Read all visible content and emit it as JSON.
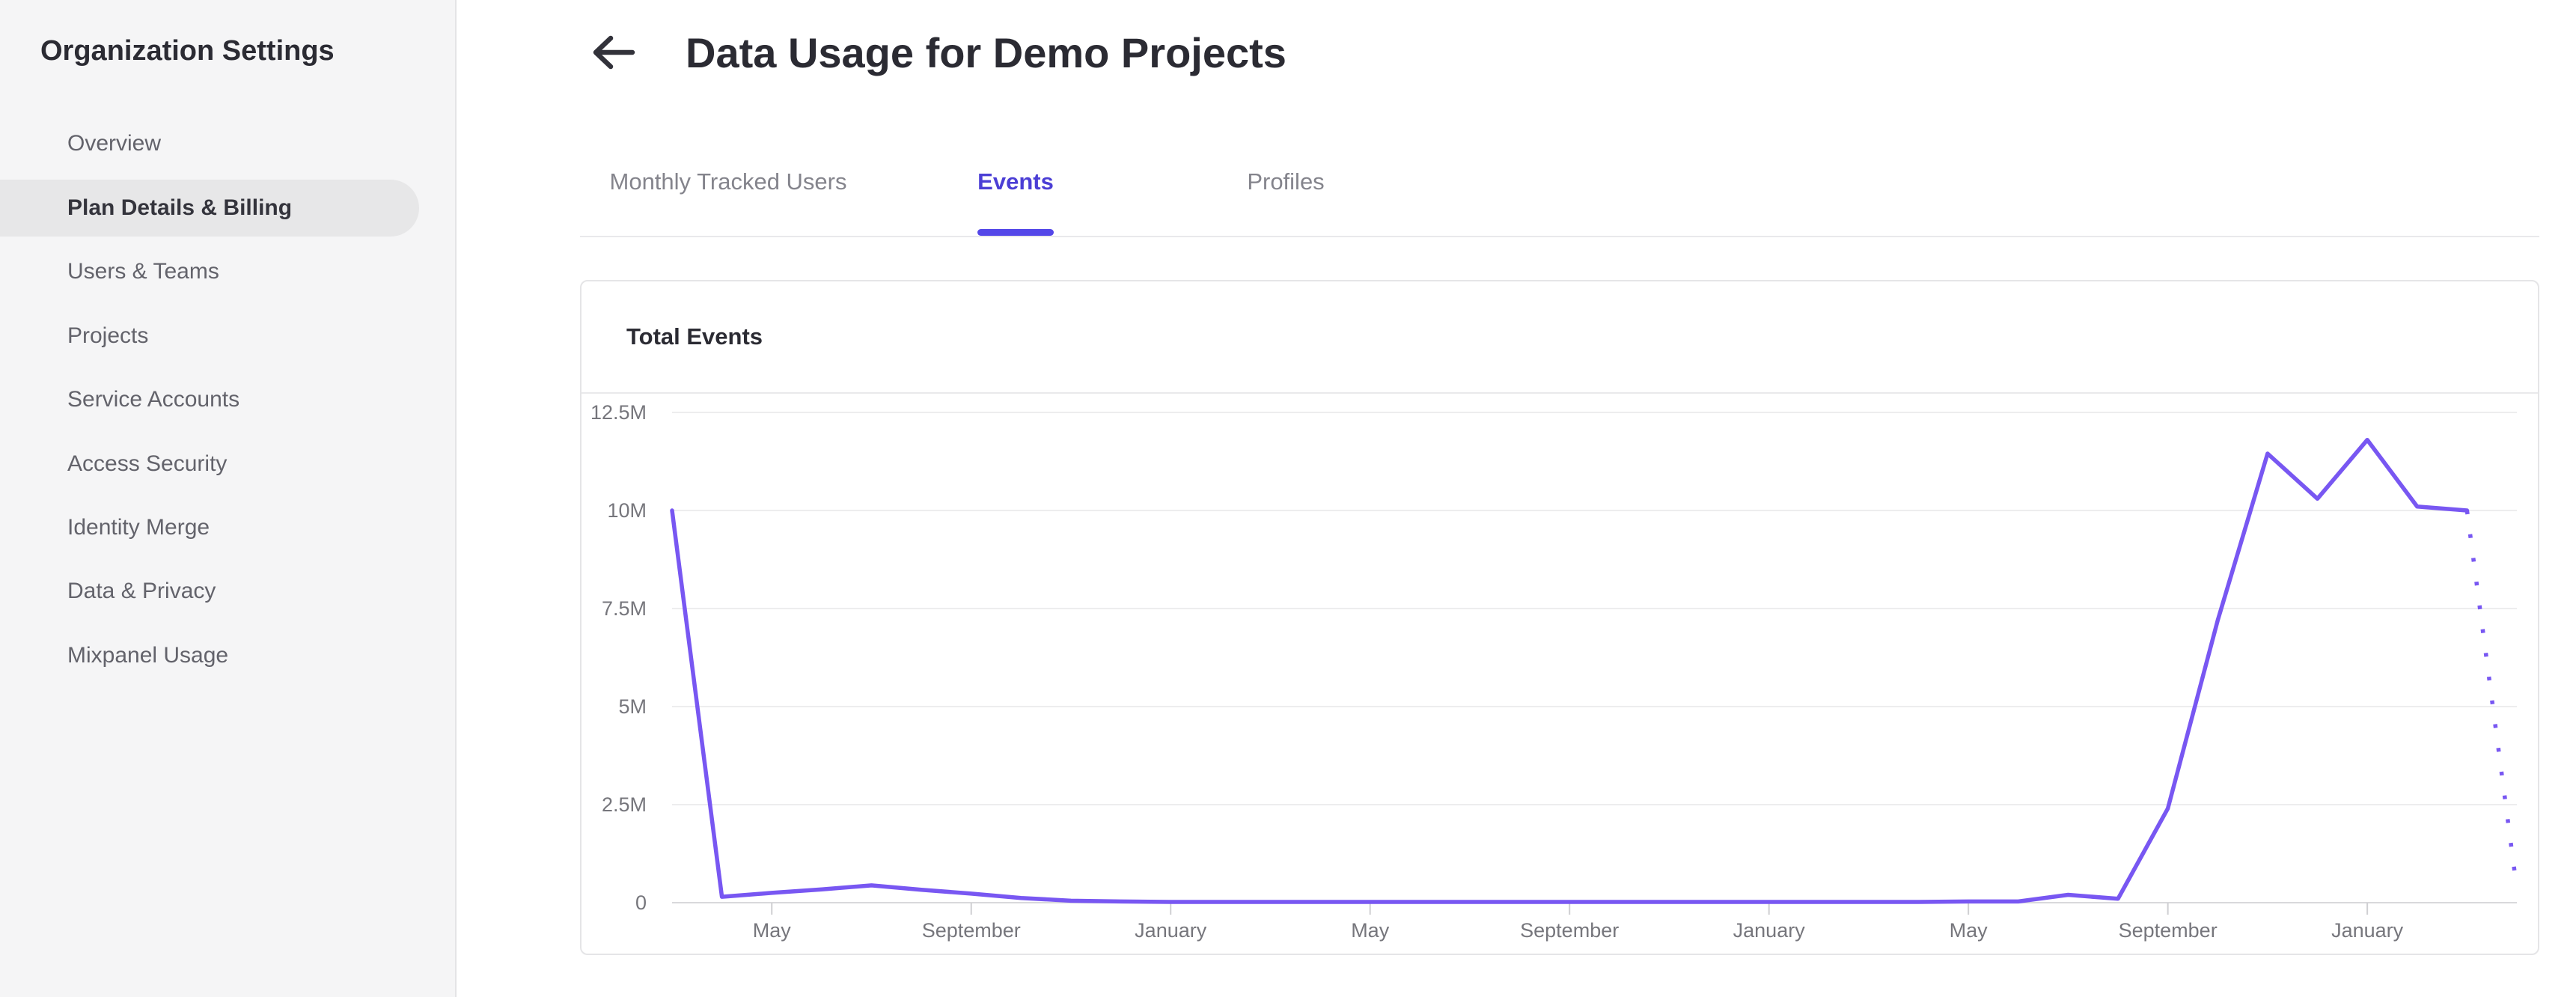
{
  "sidebar": {
    "title": "Organization Settings",
    "items": [
      {
        "label": "Overview",
        "selected": false
      },
      {
        "label": "Plan Details & Billing",
        "selected": true
      },
      {
        "label": "Users & Teams",
        "selected": false
      },
      {
        "label": "Projects",
        "selected": false
      },
      {
        "label": "Service Accounts",
        "selected": false
      },
      {
        "label": "Access Security",
        "selected": false
      },
      {
        "label": "Identity Merge",
        "selected": false
      },
      {
        "label": "Data & Privacy",
        "selected": false
      },
      {
        "label": "Mixpanel Usage",
        "selected": false
      }
    ]
  },
  "header": {
    "back_icon": "arrow-left-icon",
    "title": "Data Usage for Demo Projects"
  },
  "tabs": [
    {
      "label": "Monthly Tracked Users",
      "active": false
    },
    {
      "label": "Events",
      "active": true
    },
    {
      "label": "Profiles",
      "active": false
    }
  ],
  "card": {
    "title": "Total Events"
  },
  "colors": {
    "accent_purple": "#5447e8",
    "tab_active_text": "#4b3ed5",
    "chart_line": "#7857F2",
    "sidebar_selected_bg": "#e7e7e8",
    "gridline": "#ededee",
    "axis_line": "#d9d9db",
    "tick": "#cfcfd2",
    "axis_label_text": "#76767c"
  },
  "chart_data": {
    "type": "line",
    "title": "Total Events",
    "unit": "events (millions)",
    "grid": "horizontal",
    "legend": "none",
    "ylim_millions": [
      0,
      12.5
    ],
    "y_ticks": [
      {
        "value_millions": 0,
        "label": "0"
      },
      {
        "value_millions": 2.5,
        "label": "2.5M"
      },
      {
        "value_millions": 5,
        "label": "5M"
      },
      {
        "value_millions": 7.5,
        "label": "7.5M"
      },
      {
        "value_millions": 10,
        "label": "10M"
      },
      {
        "value_millions": 12.5,
        "label": "12.5M"
      }
    ],
    "x_tick_labels": [
      {
        "index": 2,
        "label": "May"
      },
      {
        "index": 6,
        "label": "September"
      },
      {
        "index": 10,
        "label": "January"
      },
      {
        "index": 14,
        "label": "May"
      },
      {
        "index": 18,
        "label": "September"
      },
      {
        "index": 22,
        "label": "January"
      },
      {
        "index": 26,
        "label": "May"
      },
      {
        "index": 30,
        "label": "September"
      },
      {
        "index": 34,
        "label": "January"
      }
    ],
    "values_millions": [
      10,
      0.15,
      0.25,
      0.34,
      0.44,
      0.33,
      0.23,
      0.12,
      0.05,
      0.03,
      0.02,
      0.02,
      0.02,
      0.02,
      0.02,
      0.02,
      0.02,
      0.02,
      0.02,
      0.02,
      0.02,
      0.02,
      0.02,
      0.02,
      0.02,
      0.02,
      0.03,
      0.03,
      0.2,
      0.1,
      2.4,
      7.2,
      11.45,
      10.3,
      11.8,
      10.1,
      10.0,
      0.35
    ],
    "last_segment_dotted": true,
    "series_color": "#7857F2"
  }
}
